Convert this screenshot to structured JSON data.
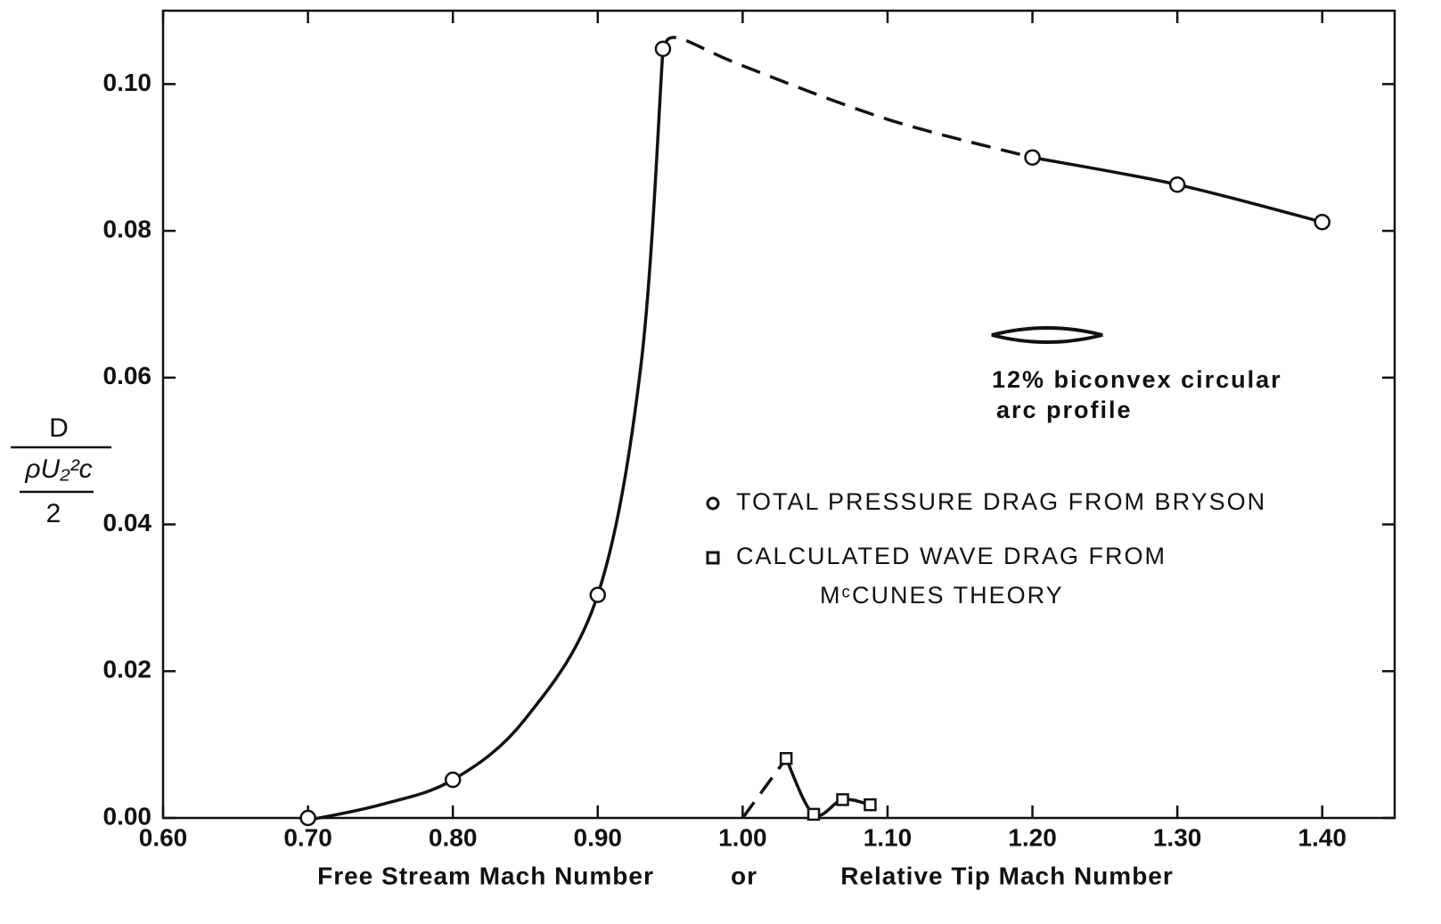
{
  "chart_data": {
    "type": "scatter",
    "xlabel": [
      "Free Stream Mach Number",
      "or",
      "Relative Tip Mach Number"
    ],
    "ylabel": {
      "numerator": "D",
      "middle": "ρU₂²c",
      "denominator": "2"
    },
    "xlim": [
      0.6,
      1.45
    ],
    "ylim": [
      0,
      0.11
    ],
    "xticks": [
      {
        "value": 0.6,
        "label": "0.60"
      },
      {
        "value": 0.7,
        "label": "0.70"
      },
      {
        "value": 0.8,
        "label": "0.80"
      },
      {
        "value": 0.9,
        "label": "0.90"
      },
      {
        "value": 1.0,
        "label": "1.00"
      },
      {
        "value": 1.1,
        "label": "1.10"
      },
      {
        "value": 1.2,
        "label": "1.20"
      },
      {
        "value": 1.3,
        "label": "1.30"
      },
      {
        "value": 1.4,
        "label": "1.40"
      }
    ],
    "yticks": [
      {
        "value": 0,
        "label": "0.00"
      },
      {
        "value": 0.02,
        "label": "0.02"
      },
      {
        "value": 0.04,
        "label": "0.04"
      },
      {
        "value": 0.06,
        "label": "0.06"
      },
      {
        "value": 0.08,
        "label": "0.08"
      },
      {
        "value": 0.1,
        "label": "0.10"
      }
    ],
    "series": [
      {
        "name": [
          "TOTAL PRESSURE DRAG FROM BRYSON"
        ],
        "marker": "circle",
        "color": "#111111",
        "x": [
          0.7,
          0.8,
          0.9,
          0.945,
          1.2,
          1.3,
          1.4
        ],
        "values": [
          0.0,
          0.0052,
          0.0304,
          0.1048,
          0.09,
          0.0863,
          0.0812
        ]
      },
      {
        "name": [
          "CALCULATED WAVE DRAG FROM",
          "MᶜCUNES THEORY"
        ],
        "marker": "square",
        "color": "#111111",
        "x": [
          1.03,
          1.049,
          1.069,
          1.088
        ],
        "values": [
          0.0081,
          0.0005,
          0.0025,
          0.0018
        ]
      }
    ],
    "curves": [
      {
        "dashed": false,
        "x": [
          0.7,
          0.75,
          0.8,
          0.85,
          0.9,
          0.93,
          0.945
        ],
        "values": [
          -0.0003,
          0.0018,
          0.0052,
          0.0135,
          0.0304,
          0.062,
          0.1048
        ]
      },
      {
        "dashed": true,
        "x": [
          0.945,
          0.955,
          1.0,
          1.1,
          1.2
        ],
        "values": [
          0.1048,
          0.1063,
          0.1025,
          0.0952,
          0.09
        ]
      },
      {
        "dashed": false,
        "x": [
          1.2,
          1.3,
          1.4
        ],
        "values": [
          0.09,
          0.0863,
          0.0812
        ]
      },
      {
        "dashed": true,
        "x": [
          1.0,
          1.03
        ],
        "values": [
          0.0,
          0.0081
        ]
      },
      {
        "dashed": false,
        "x": [
          1.03,
          1.049,
          1.069,
          1.088
        ],
        "values": [
          0.0081,
          0.0005,
          0.0025,
          0.0018
        ]
      }
    ],
    "annotation": [
      "12% biconvex circular",
      "arc profile"
    ]
  }
}
